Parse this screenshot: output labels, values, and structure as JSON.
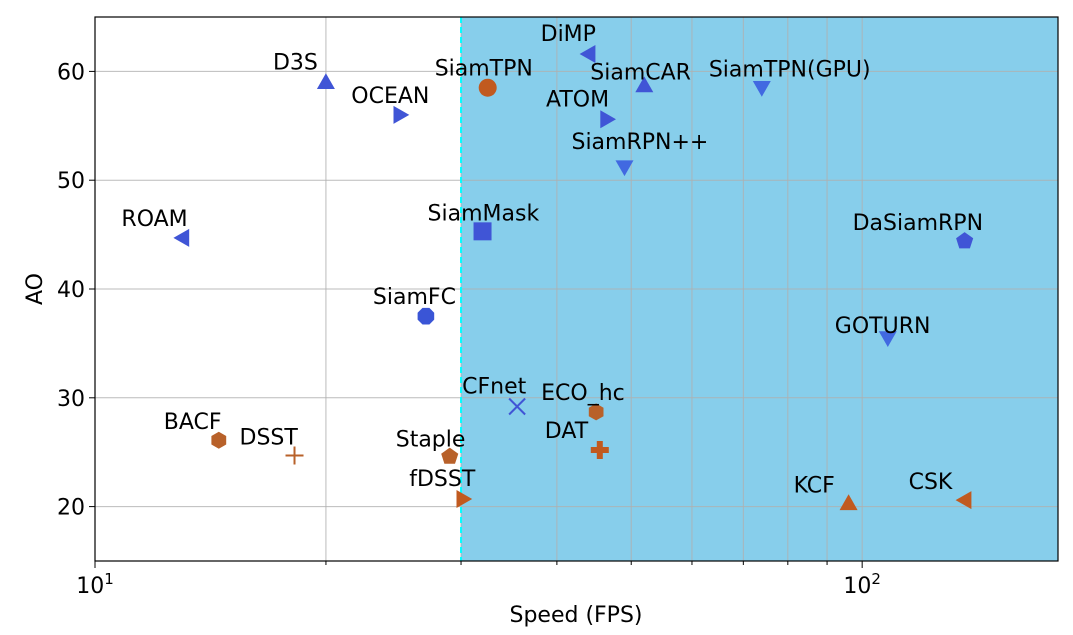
{
  "chart_data": {
    "type": "scatter",
    "title": "",
    "xlabel": "Speed (FPS)",
    "ylabel": "AO",
    "xscale": "log",
    "xlim": [
      10,
      180
    ],
    "ylim": [
      15,
      65
    ],
    "x_ticks": [
      {
        "value": 10,
        "base": "10",
        "exp": "1"
      },
      {
        "value": 100,
        "base": "10",
        "exp": "2"
      }
    ],
    "y_ticks": [
      20,
      30,
      40,
      50,
      60
    ],
    "grid": true,
    "realtime_threshold": 30,
    "colors": {
      "shade": "#87ceeb",
      "threshold": "#00ffff",
      "blue": "#4055d6",
      "blue_light": "#4169e1",
      "orange": "#c15a1f",
      "orange_alt": "#b8612a"
    },
    "points": [
      {
        "name": "D3S",
        "x": 20,
        "y": 59,
        "marker": "triangle-up",
        "color": "#4055d6",
        "label_anchor": "top-left"
      },
      {
        "name": "OCEAN",
        "x": 25,
        "y": 56,
        "marker": "triangle-right",
        "color": "#4055d6",
        "label_anchor": "top-left"
      },
      {
        "name": "ROAM",
        "x": 13,
        "y": 44.7,
        "marker": "triangle-left",
        "color": "#4055d6",
        "label_anchor": "top-left"
      },
      {
        "name": "SiamFC",
        "x": 27,
        "y": 37.5,
        "marker": "octagon",
        "color": "#3a55d6",
        "label_anchor": "top-left"
      },
      {
        "name": "DiMP",
        "x": 44,
        "y": 61.6,
        "marker": "triangle-left",
        "color": "#4055d6",
        "label_anchor": "top-left"
      },
      {
        "name": "SiamTPN",
        "x": 32.5,
        "y": 58.5,
        "marker": "circle",
        "color": "#c15a1f",
        "label_anchor": "top-left"
      },
      {
        "name": "SiamCAR",
        "x": 52,
        "y": 58.7,
        "marker": "triangle-up",
        "color": "#4055d6",
        "label_anchor": "top-left"
      },
      {
        "name": "SiamTPN(GPU)",
        "x": 74,
        "y": 58.5,
        "marker": "triangle-down",
        "color": "#4169e1",
        "label_anchor": "top-left"
      },
      {
        "name": "ATOM",
        "x": 46.5,
        "y": 55.6,
        "marker": "triangle-right",
        "color": "#4055d6",
        "label_anchor": "top-left"
      },
      {
        "name": "SiamRPN++",
        "x": 49,
        "y": 51.2,
        "marker": "triangle-down",
        "color": "#4169e1",
        "label_anchor": "top-left"
      },
      {
        "name": "SiamMask",
        "x": 32,
        "y": 45.3,
        "marker": "square",
        "color": "#4055d6",
        "label_anchor": "top-left"
      },
      {
        "name": "DaSiamRPN",
        "x": 136,
        "y": 44.4,
        "marker": "pentagon",
        "color": "#4055d6",
        "label_anchor": "top-left"
      },
      {
        "name": "GOTURN",
        "x": 108,
        "y": 35.5,
        "marker": "triangle-down",
        "color": "#4169e1",
        "label_anchor": "top-left"
      },
      {
        "name": "CFnet",
        "x": 35.5,
        "y": 29.2,
        "marker": "x",
        "color": "#4055d6",
        "label_anchor": "top-left"
      },
      {
        "name": "ECO_hc",
        "x": 45,
        "y": 28.7,
        "marker": "hexagon",
        "color": "#b8612a",
        "label_anchor": "top-left"
      },
      {
        "name": "DAT",
        "x": 45.5,
        "y": 25.2,
        "marker": "plus-filled",
        "color": "#c15a1f",
        "label_anchor": "top-left"
      },
      {
        "name": "BACF",
        "x": 14.5,
        "y": 26.1,
        "marker": "hexagon",
        "color": "#b8612a",
        "label_anchor": "top-left"
      },
      {
        "name": "DSST",
        "x": 18.2,
        "y": 24.7,
        "marker": "plus",
        "color": "#b8612a",
        "label_anchor": "top-left"
      },
      {
        "name": "Staple",
        "x": 29,
        "y": 24.6,
        "marker": "pentagon",
        "color": "#b8612a",
        "label_anchor": "top-left"
      },
      {
        "name": "fDSST",
        "x": 30.2,
        "y": 20.7,
        "marker": "triangle-right",
        "color": "#c15a1f",
        "label_anchor": "top-left"
      },
      {
        "name": "KCF",
        "x": 96,
        "y": 20.3,
        "marker": "triangle-up",
        "color": "#c15a1f",
        "label_anchor": "top-left"
      },
      {
        "name": "CSK",
        "x": 136,
        "y": 20.6,
        "marker": "triangle-left",
        "color": "#c15a1f",
        "label_anchor": "top-left"
      }
    ]
  }
}
